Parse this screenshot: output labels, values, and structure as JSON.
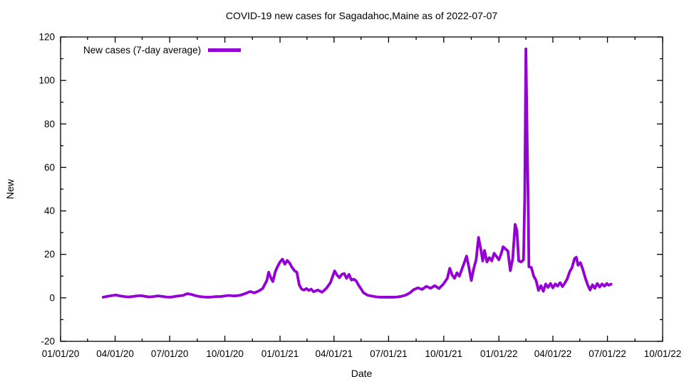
{
  "chart_data": {
    "type": "line",
    "title": "COVID-19 new cases for Sagadahoc,Maine as of 2022-07-07",
    "xlabel": "Date",
    "ylabel": "New",
    "grid": false,
    "legend_position": "top-left",
    "x_range": [
      "2020-01-01",
      "2022-10-01"
    ],
    "ylim": [
      -20,
      120
    ],
    "y_ticks": [
      -20,
      0,
      20,
      40,
      60,
      80,
      100,
      120
    ],
    "y_minor_ticks": [
      -10,
      10,
      30,
      50,
      70,
      90,
      110
    ],
    "x_tick_labels": [
      "01/01/20",
      "04/01/20",
      "07/01/20",
      "10/01/20",
      "01/01/21",
      "04/01/21",
      "07/01/21",
      "10/01/21",
      "01/01/22",
      "04/01/22",
      "07/01/22",
      "10/01/22"
    ],
    "x_tick_dates": [
      "2020-01-01",
      "2020-04-01",
      "2020-07-01",
      "2020-10-01",
      "2021-01-01",
      "2021-04-01",
      "2021-07-01",
      "2021-10-01",
      "2022-01-01",
      "2022-04-01",
      "2022-07-01",
      "2022-10-01"
    ],
    "x_minor_tick_dates": [
      "2020-02-15",
      "2020-05-16",
      "2020-08-16",
      "2020-11-16",
      "2021-02-15",
      "2021-05-16",
      "2021-08-16",
      "2021-11-16",
      "2022-02-15",
      "2022-05-16",
      "2022-08-16"
    ],
    "colors": {
      "line": "#9400D3",
      "axis": "#000000",
      "background": "#ffffff"
    },
    "series": [
      {
        "name": "New cases (7-day average)",
        "color": "#9400D3",
        "x": [
          "2020-03-12",
          "2020-03-19",
          "2020-03-26",
          "2020-04-02",
          "2020-04-09",
          "2020-04-16",
          "2020-04-23",
          "2020-04-30",
          "2020-05-07",
          "2020-05-14",
          "2020-05-21",
          "2020-05-28",
          "2020-06-04",
          "2020-06-11",
          "2020-06-18",
          "2020-06-25",
          "2020-07-02",
          "2020-07-09",
          "2020-07-16",
          "2020-07-23",
          "2020-07-30",
          "2020-08-06",
          "2020-08-13",
          "2020-08-20",
          "2020-08-27",
          "2020-09-03",
          "2020-09-10",
          "2020-09-17",
          "2020-09-24",
          "2020-10-01",
          "2020-10-08",
          "2020-10-15",
          "2020-10-22",
          "2020-10-29",
          "2020-11-05",
          "2020-11-12",
          "2020-11-19",
          "2020-11-26",
          "2020-12-03",
          "2020-12-10",
          "2020-12-13",
          "2020-12-17",
          "2020-12-20",
          "2020-12-24",
          "2020-12-28",
          "2021-01-01",
          "2021-01-05",
          "2021-01-09",
          "2021-01-13",
          "2021-01-17",
          "2021-01-21",
          "2021-01-25",
          "2021-01-29",
          "2021-02-02",
          "2021-02-06",
          "2021-02-10",
          "2021-02-14",
          "2021-02-18",
          "2021-02-22",
          "2021-02-26",
          "2021-03-05",
          "2021-03-12",
          "2021-03-19",
          "2021-03-26",
          "2021-04-02",
          "2021-04-06",
          "2021-04-10",
          "2021-04-14",
          "2021-04-18",
          "2021-04-22",
          "2021-04-26",
          "2021-04-30",
          "2021-05-04",
          "2021-05-08",
          "2021-05-12",
          "2021-05-16",
          "2021-05-20",
          "2021-05-27",
          "2021-06-03",
          "2021-06-10",
          "2021-06-17",
          "2021-06-24",
          "2021-07-01",
          "2021-07-08",
          "2021-07-15",
          "2021-07-22",
          "2021-07-29",
          "2021-08-05",
          "2021-08-12",
          "2021-08-19",
          "2021-08-26",
          "2021-09-02",
          "2021-09-09",
          "2021-09-16",
          "2021-09-23",
          "2021-09-30",
          "2021-10-07",
          "2021-10-11",
          "2021-10-15",
          "2021-10-19",
          "2021-10-23",
          "2021-10-27",
          "2021-10-31",
          "2021-11-04",
          "2021-11-08",
          "2021-11-12",
          "2021-11-16",
          "2021-11-20",
          "2021-11-24",
          "2021-11-28",
          "2021-12-02",
          "2021-12-05",
          "2021-12-08",
          "2021-12-12",
          "2021-12-16",
          "2021-12-20",
          "2021-12-24",
          "2021-12-28",
          "2022-01-01",
          "2022-01-05",
          "2022-01-08",
          "2022-01-12",
          "2022-01-16",
          "2022-01-20",
          "2022-01-24",
          "2022-01-28",
          "2022-01-31",
          "2022-02-03",
          "2022-02-07",
          "2022-02-11",
          "2022-02-13",
          "2022-02-15",
          "2022-02-17",
          "2022-02-19",
          "2022-02-20",
          "2022-02-24",
          "2022-02-28",
          "2022-03-04",
          "2022-03-08",
          "2022-03-12",
          "2022-03-16",
          "2022-03-20",
          "2022-03-24",
          "2022-03-28",
          "2022-04-01",
          "2022-04-05",
          "2022-04-09",
          "2022-04-13",
          "2022-04-17",
          "2022-04-21",
          "2022-04-25",
          "2022-04-29",
          "2022-05-03",
          "2022-05-07",
          "2022-05-10",
          "2022-05-13",
          "2022-05-17",
          "2022-05-21",
          "2022-05-25",
          "2022-05-29",
          "2022-06-02",
          "2022-06-06",
          "2022-06-10",
          "2022-06-14",
          "2022-06-18",
          "2022-06-22",
          "2022-06-26",
          "2022-06-30",
          "2022-07-03",
          "2022-07-07"
        ],
        "y": [
          0.3,
          0.7,
          1.0,
          1.3,
          0.9,
          0.6,
          0.4,
          0.6,
          0.9,
          1.0,
          0.7,
          0.4,
          0.6,
          0.9,
          0.7,
          0.4,
          0.3,
          0.6,
          0.9,
          1.1,
          1.9,
          1.6,
          1.0,
          0.6,
          0.4,
          0.3,
          0.4,
          0.6,
          0.6,
          0.9,
          1.1,
          0.9,
          1.0,
          1.4,
          2.1,
          2.9,
          2.3,
          3.1,
          4.3,
          8.0,
          11.8,
          9.0,
          7.5,
          12.0,
          14.5,
          16.5,
          17.8,
          15.5,
          17.2,
          16.0,
          14.0,
          12.5,
          11.8,
          6.0,
          4.0,
          3.6,
          4.3,
          3.4,
          4.0,
          2.8,
          3.6,
          2.6,
          4.3,
          7.0,
          12.4,
          10.5,
          9.3,
          10.8,
          11.2,
          9.0,
          10.8,
          8.2,
          8.6,
          7.8,
          5.8,
          4.2,
          2.4,
          1.2,
          0.8,
          0.5,
          0.3,
          0.3,
          0.3,
          0.3,
          0.4,
          0.7,
          1.2,
          2.2,
          3.8,
          4.6,
          3.9,
          5.3,
          4.4,
          5.6,
          4.3,
          6.2,
          9.0,
          13.6,
          10.5,
          9.0,
          11.5,
          10.0,
          13.0,
          16.0,
          19.2,
          14.0,
          8.0,
          13.5,
          17.5,
          27.8,
          22.0,
          17.0,
          21.8,
          16.5,
          18.5,
          17.0,
          20.5,
          19.0,
          17.5,
          20.5,
          23.5,
          22.5,
          21.5,
          12.5,
          18.0,
          33.8,
          31.0,
          17.0,
          16.5,
          17.5,
          45.0,
          114.5,
          75.0,
          40.0,
          14.3,
          14.0,
          10.0,
          8.0,
          3.4,
          5.6,
          3.0,
          6.4,
          4.8,
          6.6,
          4.6,
          6.4,
          5.4,
          7.0,
          5.2,
          6.8,
          8.8,
          12.0,
          14.0,
          18.0,
          18.7,
          15.0,
          16.2,
          13.0,
          9.2,
          6.0,
          3.6,
          6.0,
          4.4,
          6.6,
          5.0,
          6.4,
          5.4,
          6.6,
          5.8,
          6.3
        ]
      }
    ]
  }
}
